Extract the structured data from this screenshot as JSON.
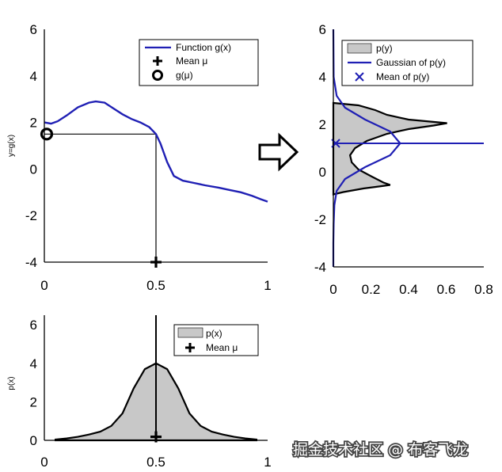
{
  "watermark": "掘金技术社区 @ 布客飞龙",
  "chart_data": [
    {
      "id": "top-left",
      "type": "line",
      "ylabel": "y=g(x)",
      "xlabel": "",
      "xlim": [
        0,
        1
      ],
      "ylim": [
        -4,
        6
      ],
      "xticks": [
        "0",
        "0.5",
        "1"
      ],
      "yticks": [
        "-4",
        "-2",
        "0",
        "2",
        "4",
        "6"
      ],
      "legend_position": "top-right",
      "legend": [
        "Function g(x)",
        "Mean μ",
        "g(μ)"
      ],
      "colors": {
        "function": "#1f1fb4",
        "marker": "#000000"
      },
      "series": [
        {
          "name": "Function g(x)",
          "x": [
            0,
            0.03,
            0.06,
            0.1,
            0.15,
            0.2,
            0.23,
            0.27,
            0.31,
            0.35,
            0.39,
            0.43,
            0.47,
            0.5,
            0.52,
            0.55,
            0.58,
            0.62,
            0.67,
            0.72,
            0.78,
            0.83,
            0.88,
            0.93,
            0.97,
            1.0
          ],
          "y": [
            2.0,
            1.95,
            2.05,
            2.3,
            2.65,
            2.85,
            2.9,
            2.85,
            2.6,
            2.35,
            2.15,
            2.0,
            1.8,
            1.5,
            1.1,
            0.3,
            -0.3,
            -0.5,
            -0.6,
            -0.7,
            -0.8,
            -0.9,
            -1.0,
            -1.15,
            -1.3,
            -1.4
          ]
        }
      ],
      "points": [
        {
          "name": "Mean μ",
          "x": 0.5,
          "y": -4
        },
        {
          "name": "g(μ)",
          "x": 0,
          "y": 1.5
        }
      ]
    },
    {
      "id": "top-right",
      "type": "area",
      "xlabel": "",
      "ylabel": "",
      "xlim": [
        0,
        0.9
      ],
      "ylim": [
        -4,
        6
      ],
      "xticks": [
        "0",
        "0.2",
        "0.4",
        "0.6",
        "0.8"
      ],
      "yticks": [
        "-4",
        "-2",
        "0",
        "2",
        "4",
        "6"
      ],
      "legend_position": "top-right",
      "legend": [
        "p(y)",
        "Gaussian of p(y)",
        "Mean of p(y)"
      ],
      "colors": {
        "fill": "#c8c8c8",
        "gaussian": "#1f1fb4",
        "mean": "#1f1fb4"
      },
      "series": [
        {
          "name": "p(y)",
          "y": [
            2.9,
            2.8,
            2.6,
            2.4,
            2.2,
            2.05,
            1.95,
            1.8,
            1.6,
            1.3,
            1.0,
            0.7,
            0.4,
            0.1,
            -0.2,
            -0.45,
            -0.55,
            -0.6,
            -0.7,
            -0.85,
            -0.95
          ],
          "x": [
            0,
            0.15,
            0.25,
            0.32,
            0.45,
            0.68,
            0.6,
            0.45,
            0.32,
            0.2,
            0.13,
            0.1,
            0.11,
            0.15,
            0.23,
            0.3,
            0.34,
            0.29,
            0.18,
            0.06,
            0
          ]
        },
        {
          "name": "Gaussian of p(y)",
          "y": [
            6,
            4,
            3.2,
            2.7,
            2.2,
            1.7,
            1.2,
            0.7,
            0.2,
            -0.3,
            -0.8,
            -1.4,
            -2.2,
            -3,
            -4
          ],
          "x": [
            0,
            0.002,
            0.02,
            0.07,
            0.19,
            0.34,
            0.4,
            0.34,
            0.19,
            0.07,
            0.02,
            0.006,
            0.002,
            0,
            0
          ]
        }
      ],
      "points": [
        {
          "name": "Mean of p(y)",
          "x": 0,
          "y": 1.2
        }
      ],
      "mean_line_y": 1.2
    },
    {
      "id": "bottom-left",
      "type": "area",
      "ylabel": "p(x)",
      "xlabel": "",
      "xlim": [
        0,
        1
      ],
      "ylim": [
        0,
        6.5
      ],
      "xticks": [
        "0",
        "0.5",
        "1"
      ],
      "yticks": [
        "0",
        "2",
        "4",
        "6"
      ],
      "legend_position": "top-right",
      "legend": [
        "p(x)",
        "Mean μ"
      ],
      "colors": {
        "fill": "#c8c8c8",
        "line": "#000000"
      },
      "series": [
        {
          "name": "p(x)",
          "x": [
            0.05,
            0.1,
            0.15,
            0.2,
            0.25,
            0.3,
            0.35,
            0.4,
            0.45,
            0.5,
            0.55,
            0.6,
            0.65,
            0.7,
            0.75,
            0.8,
            0.85,
            0.9,
            0.95
          ],
          "y": [
            0.04,
            0.1,
            0.18,
            0.3,
            0.45,
            0.75,
            1.4,
            2.7,
            3.7,
            4.0,
            3.7,
            2.7,
            1.4,
            0.75,
            0.45,
            0.3,
            0.18,
            0.1,
            0.04
          ]
        }
      ],
      "points": [
        {
          "name": "Mean μ",
          "x": 0.5,
          "y": 0.1
        }
      ]
    }
  ]
}
